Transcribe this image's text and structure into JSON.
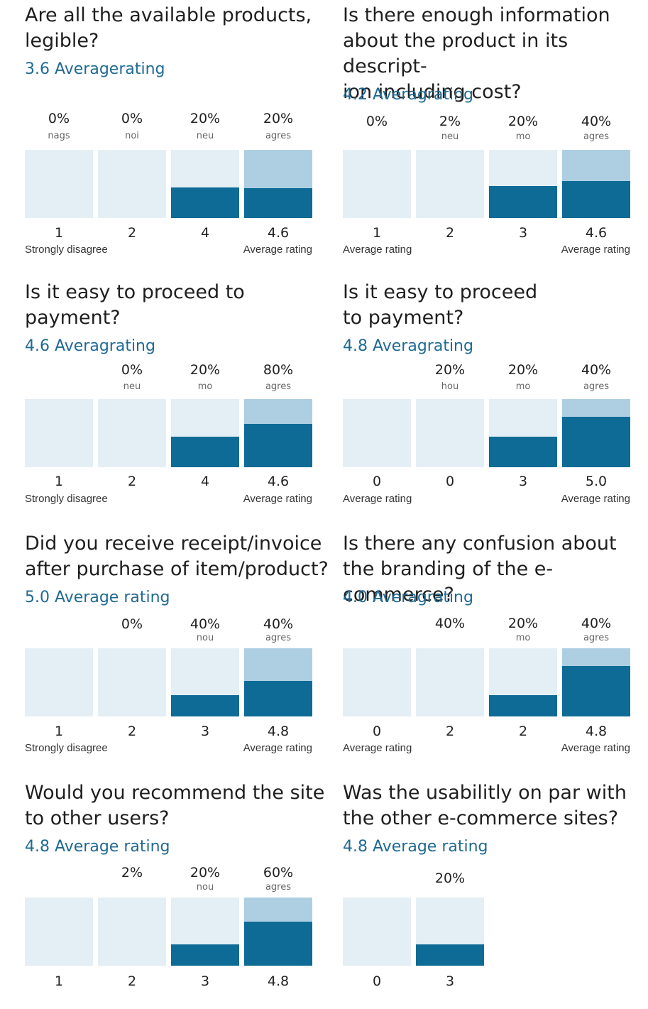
{
  "chart_data": [
    {
      "type": "bar",
      "title": "Are all the available products,\nlegible?",
      "subtitle": "3.6 Averagerating",
      "columns": [
        {
          "pct": "0%",
          "sub": "nags",
          "num": "1",
          "light": 0,
          "dark": 0
        },
        {
          "pct": "0%",
          "sub": "noi",
          "num": "2",
          "light": 0,
          "dark": 0
        },
        {
          "pct": "20%",
          "sub": "neu",
          "num": "4",
          "light": 0,
          "dark": 0.45
        },
        {
          "pct": "20%",
          "sub": "agres",
          "num": "4.6",
          "light": 1.0,
          "dark": 0.44
        }
      ],
      "bottom_left": "Strongly disagree",
      "bottom_right": "Average rating"
    },
    {
      "type": "bar",
      "title": "Is there enough information\nabout the product in its descript-\nion including cost?",
      "subtitle": "4.2 Averagrating",
      "columns": [
        {
          "pct": "0%",
          "sub": "",
          "num": "1",
          "light": 0,
          "dark": 0
        },
        {
          "pct": "2%",
          "sub": "neu",
          "num": "2",
          "light": 0,
          "dark": 0
        },
        {
          "pct": "20%",
          "sub": "mo",
          "num": "3",
          "light": 0,
          "dark": 0.47
        },
        {
          "pct": "40%",
          "sub": "agres",
          "num": "4.6",
          "light": 1.0,
          "dark": 0.54
        }
      ],
      "bottom_left": "Average rating",
      "bottom_right": "Average rating"
    },
    {
      "type": "bar",
      "title": "Is it easy to proceed to\npayment?",
      "subtitle": "4.6 Averagrating",
      "columns": [
        {
          "pct": "",
          "sub": "",
          "num": "1",
          "light": 0,
          "dark": 0
        },
        {
          "pct": "0%",
          "sub": "neu",
          "num": "2",
          "light": 0,
          "dark": 0
        },
        {
          "pct": "20%",
          "sub": "mo",
          "num": "4",
          "light": 0,
          "dark": 0.45
        },
        {
          "pct": "80%",
          "sub": "agres",
          "num": "4.6",
          "light": 1.0,
          "dark": 0.64
        }
      ],
      "bottom_left": "Strongly disagree",
      "bottom_right": "Average rating"
    },
    {
      "type": "bar",
      "title": "Is it easy to proceed\nto payment?",
      "subtitle": "4.8 Averagrating",
      "columns": [
        {
          "pct": "",
          "sub": "",
          "num": "0",
          "light": 0,
          "dark": 0
        },
        {
          "pct": "20%",
          "sub": "hou",
          "num": "0",
          "light": 0,
          "dark": 0
        },
        {
          "pct": "20%",
          "sub": "mo",
          "num": "3",
          "light": 0,
          "dark": 0.45
        },
        {
          "pct": "40%",
          "sub": "agres",
          "num": "5.0",
          "light": 1.0,
          "dark": 0.74
        }
      ],
      "bottom_left": "Average rating",
      "bottom_right": "Average rating"
    },
    {
      "type": "bar",
      "title": "Did you receive receipt/invoice\nafter purchase of item/product?",
      "subtitle": "5.0 Average rating",
      "columns": [
        {
          "pct": "",
          "sub": "",
          "num": "1",
          "light": 0,
          "dark": 0
        },
        {
          "pct": "0%",
          "sub": "",
          "num": "2",
          "light": 0,
          "dark": 0
        },
        {
          "pct": "40%",
          "sub": "nou",
          "num": "3",
          "light": 0,
          "dark": 0.31
        },
        {
          "pct": "40%",
          "sub": "agres",
          "num": "4.8",
          "light": 1.0,
          "dark": 0.52
        }
      ],
      "bottom_left": "Strongly disagree",
      "bottom_right": "Average rating"
    },
    {
      "type": "bar",
      "title": "Is there any confusion about\nthe branding of the e-commerce?",
      "subtitle": "4.0 Averagrating",
      "columns": [
        {
          "pct": "",
          "sub": "",
          "num": "0",
          "light": 0,
          "dark": 0
        },
        {
          "pct": "40%",
          "sub": "",
          "num": "2",
          "light": 0,
          "dark": 0
        },
        {
          "pct": "20%",
          "sub": "mo",
          "num": "2",
          "light": 0,
          "dark": 0.31
        },
        {
          "pct": "40%",
          "sub": "agres",
          "num": "4.8",
          "light": 1.0,
          "dark": 0.74
        }
      ],
      "bottom_left": "Average rating",
      "bottom_right": "Average rating"
    },
    {
      "type": "bar",
      "title": "Would you recommend the site\nto other users?",
      "subtitle": "4.8 Average rating",
      "columns": [
        {
          "pct": "",
          "sub": "",
          "num": "1",
          "light": 0,
          "dark": 0
        },
        {
          "pct": "2%",
          "sub": "",
          "num": "2",
          "light": 0,
          "dark": 0
        },
        {
          "pct": "20%",
          "sub": "nou",
          "num": "3",
          "light": 0,
          "dark": 0.31
        },
        {
          "pct": "60%",
          "sub": "agres",
          "num": "4.8",
          "light": 1.0,
          "dark": 0.65
        }
      ],
      "bottom_left": "",
      "bottom_right": ""
    },
    {
      "type": "bar",
      "title": "Was the usabilitly  on par with\nthe other e-commerce sites?",
      "subtitle": "4.8 Average rating",
      "columns": [
        {
          "pct": "",
          "sub": "",
          "num": "0",
          "light": 0,
          "dark": 0
        },
        {
          "pct": "20%",
          "sub": "",
          "num": "3",
          "light": 0,
          "dark": 0.31
        }
      ],
      "bottom_left": "",
      "bottom_right": ""
    }
  ],
  "colors": {
    "bar_empty": "#e4eef5",
    "bar_light": "#aecfe2",
    "bar_dark": "#0e6b96",
    "subtitle": "#1f6a94"
  }
}
